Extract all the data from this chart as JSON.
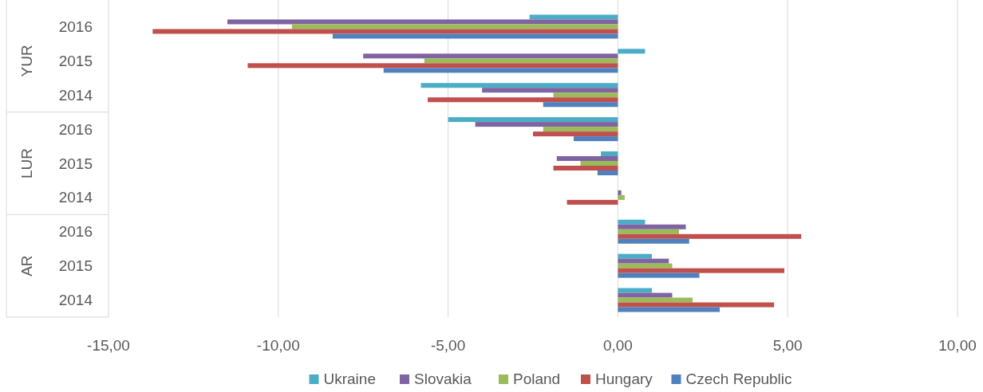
{
  "chart_data": {
    "type": "bar",
    "orientation": "horizontal",
    "categories": [
      "2016",
      "2015",
      "2014",
      "2016",
      "2015",
      "2014",
      "2016",
      "2015",
      "2014"
    ],
    "annotations": [
      "YUR",
      "LUR",
      "AR"
    ],
    "series": [
      {
        "name": "Ukraine",
        "color": "#4bacc6",
        "values": [
          -2.6,
          0.8,
          -5.8,
          -5.0,
          -0.5,
          0,
          0.8,
          1.0,
          1.0
        ]
      },
      {
        "name": "Slovakia",
        "color": "#8064a2",
        "values": [
          -11.5,
          -7.5,
          -4.0,
          -4.2,
          -1.8,
          0.1,
          2.0,
          1.5,
          1.6
        ]
      },
      {
        "name": "Poland",
        "color": "#9bbb59",
        "values": [
          -9.6,
          -5.7,
          -1.9,
          -2.2,
          -1.1,
          0.2,
          1.8,
          1.6,
          2.2
        ]
      },
      {
        "name": "Hungary",
        "color": "#c0504d",
        "values": [
          -13.7,
          -10.9,
          -5.6,
          -2.5,
          -1.9,
          -1.5,
          5.4,
          4.9,
          4.6
        ]
      },
      {
        "name": "Czech Republic",
        "color": "#4f81bd",
        "values": [
          -8.4,
          -6.9,
          -2.2,
          -1.3,
          -0.6,
          0,
          2.1,
          2.4,
          3.0
        ]
      }
    ],
    "xlim": [
      -15,
      10
    ],
    "xticks": [
      {
        "value": -15,
        "label": "-15,00"
      },
      {
        "value": -10,
        "label": "-10,00"
      },
      {
        "value": -5,
        "label": "-5,00"
      },
      {
        "value": 0,
        "label": "0,00"
      },
      {
        "value": 5,
        "label": "5,00"
      },
      {
        "value": 10,
        "label": "10,00"
      }
    ],
    "grid": "x",
    "legend": "bottom"
  }
}
